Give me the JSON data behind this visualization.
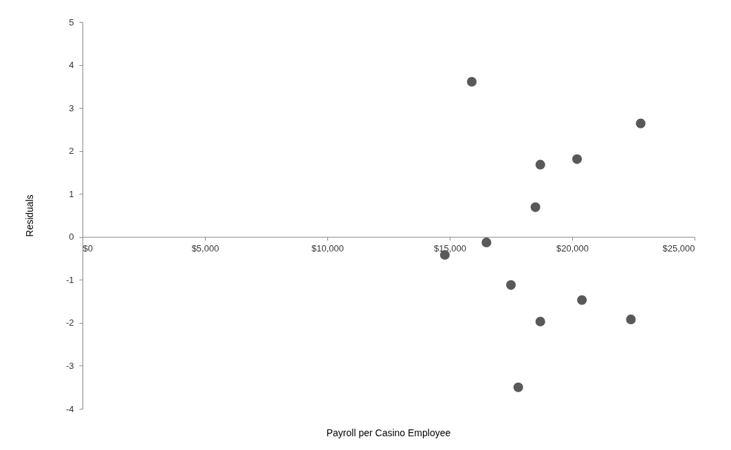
{
  "chart_data": {
    "type": "scatter",
    "xlabel": "Payroll per Casino Employee",
    "ylabel": "Residuals",
    "x": [
      14800,
      15900,
      16500,
      17500,
      17800,
      18500,
      18700,
      18700,
      20200,
      20400,
      22400,
      22800
    ],
    "series": [
      {
        "color": "#595959",
        "values": [
          -0.42,
          3.61,
          -0.13,
          -1.12,
          -3.5,
          0.69,
          1.68,
          -1.97,
          1.81,
          -1.47,
          -1.92,
          2.64
        ]
      }
    ],
    "xlim": [
      0,
      25000
    ],
    "xticks": [
      {
        "value": 0,
        "label": "$0"
      },
      {
        "value": 5000,
        "label": "$5,000"
      },
      {
        "value": 10000,
        "label": "$10,000"
      },
      {
        "value": 15000,
        "label": "$15,000"
      },
      {
        "value": 20000,
        "label": "$20,000"
      },
      {
        "value": 25000,
        "label": "$25,000"
      }
    ],
    "ylim": [
      -4,
      5
    ],
    "yticks": [
      -4,
      -3,
      -2,
      -1,
      0,
      1,
      2,
      3,
      4,
      5
    ],
    "grid": false,
    "marker": "circle"
  }
}
